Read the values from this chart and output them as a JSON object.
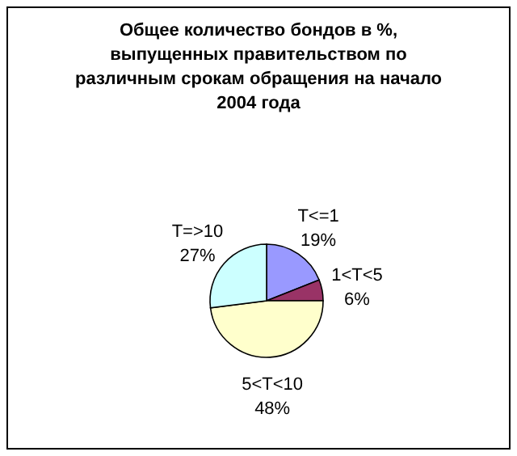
{
  "chart_data": {
    "type": "pie",
    "title": "Общее количество бондов в %, выпущенных правительством по различным срокам обращения на начало 2004 года",
    "categories": [
      "T<=1",
      "1<T<5",
      "5<T<10",
      "T=>10"
    ],
    "values": [
      19,
      6,
      48,
      27
    ],
    "value_labels": [
      "19%",
      "6%",
      "48%",
      "27%"
    ],
    "colors": [
      "#9999ff",
      "#993366",
      "#ffffcc",
      "#ccffff"
    ],
    "legend": false
  }
}
